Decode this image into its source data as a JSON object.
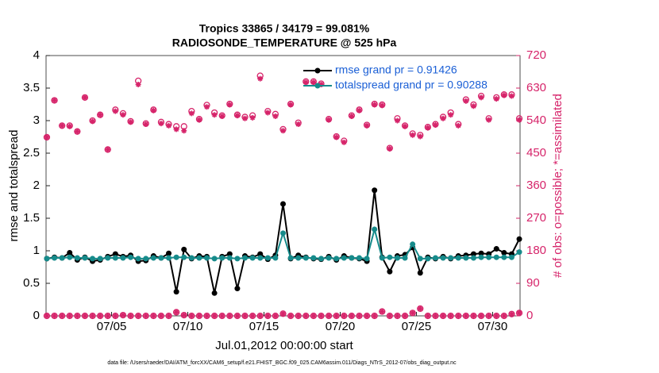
{
  "chart_data": {
    "type": "line",
    "title": "Tropics 33865 / 34179 = 99.081%",
    "subtitle": "RADIOSONDE_TEMPERATURE @ 525 hPa",
    "xlabel": "Jul.01,2012 00:00:00 start",
    "ylabel": "rmse and totalspread",
    "y2label": "# of obs: o=possible; *=assimilated",
    "footnote": "data file: /Users/raeder/DAI/ATM_forcXX/CAM6_setup/f.e21.FHIST_BGC.f09_025.CAM6assim.011/Diags_NTrS_2012-07/obs_diag_output.nc",
    "legend": "upper right",
    "x": [
      0.75,
      1.25,
      1.75,
      2.25,
      2.75,
      3.25,
      3.75,
      4.25,
      4.75,
      5.25,
      5.75,
      6.25,
      6.75,
      7.25,
      7.75,
      8.25,
      8.75,
      9.25,
      9.75,
      10.25,
      10.75,
      11.25,
      11.75,
      12.25,
      12.75,
      13.25,
      13.75,
      14.25,
      14.75,
      15.25,
      15.75,
      16.25,
      16.75,
      17.25,
      17.75,
      18.25,
      18.75,
      19.25,
      19.75,
      20.25,
      20.75,
      21.25,
      21.75,
      22.25,
      22.75,
      23.25,
      23.75,
      24.25,
      24.75,
      25.25,
      25.75,
      26.25,
      26.75,
      27.25,
      27.75,
      28.25,
      28.75,
      29.25,
      29.75,
      30.25,
      30.75,
      31.25,
      31.75
    ],
    "xlim": [
      0.7,
      31.8
    ],
    "xticks": [
      {
        "value": 5,
        "label": "07/05"
      },
      {
        "value": 10,
        "label": "07/10"
      },
      {
        "value": 15,
        "label": "07/15"
      },
      {
        "value": 20,
        "label": "07/20"
      },
      {
        "value": 25,
        "label": "07/25"
      },
      {
        "value": 30,
        "label": "07/30"
      }
    ],
    "ylim": [
      0,
      4
    ],
    "yticks": [
      0,
      0.5,
      1,
      1.5,
      2,
      2.5,
      3,
      3.5,
      4
    ],
    "y2lim": [
      0,
      720
    ],
    "y2ticks": [
      0,
      90,
      180,
      270,
      360,
      450,
      540,
      630,
      720
    ],
    "series": [
      {
        "name": "rmse grand pr = 0.91426",
        "color": "#000000",
        "marker": "dot",
        "line": true,
        "values": [
          0.88,
          0.9,
          0.89,
          0.97,
          0.86,
          0.9,
          0.84,
          0.86,
          0.91,
          0.95,
          0.91,
          0.93,
          0.84,
          0.85,
          0.92,
          0.89,
          0.96,
          0.37,
          1.02,
          0.88,
          0.92,
          0.91,
          0.35,
          0.91,
          0.95,
          0.42,
          0.92,
          0.9,
          0.95,
          0.87,
          0.93,
          1.72,
          0.88,
          0.93,
          0.9,
          0.88,
          0.87,
          0.91,
          0.86,
          0.92,
          0.89,
          0.88,
          0.84,
          1.93,
          0.9,
          0.68,
          0.92,
          0.94,
          1.05,
          0.66,
          0.9,
          0.88,
          0.91,
          0.88,
          0.92,
          0.93,
          0.95,
          0.96,
          0.95,
          1.03,
          0.97,
          0.95,
          1.18
        ]
      },
      {
        "name": "totalspread grand pr = 0.90288",
        "color": "#168b8b",
        "marker": "dot",
        "line": true,
        "values": [
          0.88,
          0.89,
          0.89,
          0.9,
          0.89,
          0.89,
          0.88,
          0.88,
          0.89,
          0.89,
          0.89,
          0.9,
          0.88,
          0.88,
          0.89,
          0.89,
          0.89,
          0.9,
          0.9,
          0.89,
          0.89,
          0.89,
          0.88,
          0.89,
          0.89,
          0.88,
          0.89,
          0.89,
          0.89,
          0.89,
          0.89,
          1.27,
          0.89,
          0.89,
          0.89,
          0.89,
          0.88,
          0.89,
          0.88,
          0.89,
          0.89,
          0.89,
          0.88,
          1.33,
          0.89,
          0.9,
          0.89,
          0.89,
          1.1,
          0.88,
          0.88,
          0.89,
          0.89,
          0.89,
          0.89,
          0.89,
          0.89,
          0.9,
          0.9,
          0.9,
          0.9,
          0.9,
          0.98
        ]
      },
      {
        "color": "#d6246a",
        "marker": "o",
        "line": false,
        "axis": "y2",
        "values": [
          494,
          596,
          526,
          526,
          510,
          604,
          540,
          556,
          460,
          570,
          560,
          538,
          650,
          532,
          570,
          536,
          530,
          524,
          524,
          566,
          544,
          583,
          562,
          554,
          586,
          556,
          550,
          554,
          664,
          566,
          558,
          516,
          586,
          534,
          648,
          648,
          642,
          544,
          496,
          484,
          554,
          570,
          528,
          586,
          584,
          464,
          546,
          526,
          504,
          500,
          522,
          530,
          550,
          562,
          530,
          598,
          584,
          608,
          546,
          604,
          612,
          612,
          546
        ]
      },
      {
        "color": "#d6246a",
        "marker": "*",
        "line": false,
        "axis": "y2",
        "values": [
          494,
          596,
          526,
          524,
          510,
          604,
          538,
          556,
          460,
          566,
          556,
          536,
          640,
          530,
          568,
          532,
          526,
          516,
          512,
          560,
          542,
          578,
          556,
          552,
          584,
          554,
          546,
          548,
          656,
          562,
          552,
          512,
          584,
          530,
          646,
          646,
          640,
          542,
          494,
          480,
          552,
          568,
          526,
          584,
          582,
          462,
          540,
          524,
          500,
          496,
          520,
          528,
          546,
          556,
          526,
          594,
          580,
          604,
          542,
          600,
          610,
          608,
          542
        ]
      },
      {
        "color": "#d6246a",
        "marker": "o",
        "line": false,
        "axis": "y2",
        "values": [
          0,
          0,
          0,
          0,
          0,
          0,
          0,
          0,
          0,
          0,
          2,
          0,
          0,
          0,
          0,
          0,
          0,
          10,
          2,
          0,
          0,
          0,
          0,
          0,
          0,
          0,
          0,
          0,
          0,
          0,
          0,
          6,
          0,
          0,
          0,
          0,
          0,
          0,
          0,
          0,
          0,
          0,
          0,
          0,
          12,
          0,
          0,
          0,
          8,
          20,
          0,
          0,
          0,
          0,
          0,
          0,
          0,
          0,
          0,
          0,
          0,
          5,
          8
        ]
      },
      {
        "color": "#d6246a",
        "marker": "*",
        "line": false,
        "axis": "y2",
        "values": [
          0,
          0,
          0,
          0,
          0,
          0,
          0,
          0,
          0,
          0,
          2,
          0,
          0,
          0,
          0,
          0,
          0,
          10,
          2,
          0,
          0,
          0,
          0,
          0,
          0,
          0,
          0,
          0,
          0,
          0,
          0,
          6,
          0,
          0,
          0,
          0,
          0,
          0,
          0,
          0,
          0,
          0,
          0,
          0,
          12,
          0,
          0,
          0,
          8,
          20,
          0,
          0,
          0,
          0,
          0,
          0,
          0,
          0,
          0,
          0,
          0,
          5,
          8
        ]
      }
    ]
  }
}
